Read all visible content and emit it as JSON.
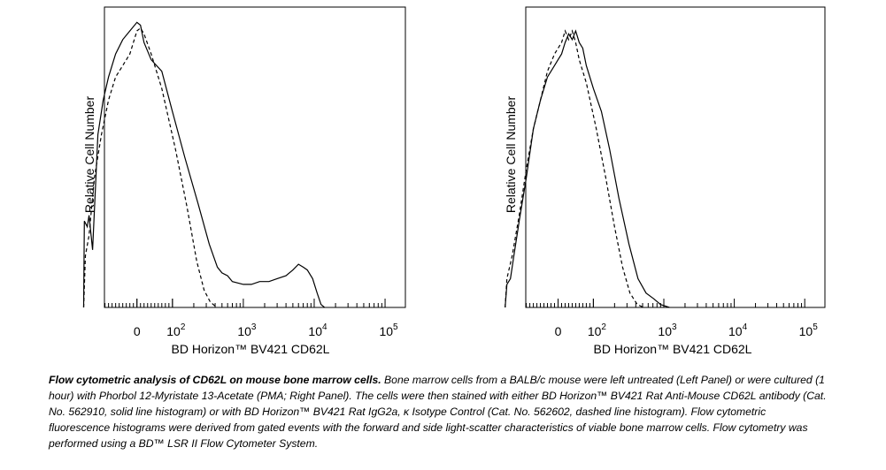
{
  "chart_data": [
    {
      "type": "line",
      "panel": "left",
      "ylabel": "Relative Cell Number",
      "xlabel": "BD Horizon™ BV421 CD62L",
      "x_scale": "biexponential",
      "x_ticks": [
        {
          "base": "0",
          "exp": "",
          "value": 0
        },
        {
          "base": "10",
          "exp": "2",
          "value": 100
        },
        {
          "base": "10",
          "exp": "3",
          "value": 1000
        },
        {
          "base": "10",
          "exp": "4",
          "value": 10000
        },
        {
          "base": "10",
          "exp": "5",
          "value": 100000
        }
      ],
      "ylim": [
        0,
        100
      ],
      "series": [
        {
          "style": "solid",
          "points": [
            [
              -150,
              0
            ],
            [
              -148,
              30
            ],
            [
              -140,
              28
            ],
            [
              -135,
              32
            ],
            [
              -125,
              20
            ],
            [
              -110,
              60
            ],
            [
              -95,
              72
            ],
            [
              -80,
              80
            ],
            [
              -60,
              88
            ],
            [
              -40,
              93
            ],
            [
              -20,
              96
            ],
            [
              0,
              99
            ],
            [
              10,
              98
            ],
            [
              20,
              92
            ],
            [
              40,
              86
            ],
            [
              70,
              82
            ],
            [
              100,
              68
            ],
            [
              150,
              52
            ],
            [
              230,
              36
            ],
            [
              330,
              22
            ],
            [
              430,
              14
            ],
            [
              500,
              12
            ],
            [
              600,
              11
            ],
            [
              700,
              9
            ],
            [
              1000,
              8
            ],
            [
              1300,
              8
            ],
            [
              1700,
              9
            ],
            [
              2300,
              9
            ],
            [
              3000,
              10
            ],
            [
              4000,
              11
            ],
            [
              5000,
              13
            ],
            [
              6000,
              15
            ],
            [
              7000,
              14
            ],
            [
              8000,
              13
            ],
            [
              9500,
              10
            ],
            [
              11000,
              5
            ],
            [
              12500,
              1
            ],
            [
              14000,
              0
            ]
          ]
        },
        {
          "style": "dashed",
          "points": [
            [
              -150,
              0
            ],
            [
              -145,
              18
            ],
            [
              -135,
              25
            ],
            [
              -120,
              45
            ],
            [
              -100,
              60
            ],
            [
              -80,
              72
            ],
            [
              -60,
              80
            ],
            [
              -40,
              84
            ],
            [
              -20,
              88
            ],
            [
              0,
              96
            ],
            [
              10,
              97
            ],
            [
              20,
              95
            ],
            [
              40,
              88
            ],
            [
              70,
              76
            ],
            [
              110,
              55
            ],
            [
              160,
              35
            ],
            [
              220,
              16
            ],
            [
              280,
              6
            ],
            [
              340,
              2
            ],
            [
              420,
              0
            ]
          ]
        }
      ]
    },
    {
      "type": "line",
      "panel": "right",
      "ylabel": "Relative Cell Number",
      "xlabel": "BD Horizon™ BV421 CD62L",
      "x_scale": "biexponential",
      "x_ticks": [
        {
          "base": "0",
          "exp": "",
          "value": 0
        },
        {
          "base": "10",
          "exp": "2",
          "value": 100
        },
        {
          "base": "10",
          "exp": "3",
          "value": 1000
        },
        {
          "base": "10",
          "exp": "4",
          "value": 10000
        },
        {
          "base": "10",
          "exp": "5",
          "value": 100000
        }
      ],
      "ylim": [
        0,
        100
      ],
      "series": [
        {
          "style": "solid",
          "points": [
            [
              -150,
              0
            ],
            [
              -145,
              8
            ],
            [
              -135,
              10
            ],
            [
              -125,
              18
            ],
            [
              -110,
              30
            ],
            [
              -90,
              45
            ],
            [
              -70,
              62
            ],
            [
              -50,
              72
            ],
            [
              -30,
              80
            ],
            [
              -10,
              84
            ],
            [
              0,
              86
            ],
            [
              10,
              88
            ],
            [
              20,
              92
            ],
            [
              30,
              95
            ],
            [
              40,
              93
            ],
            [
              50,
              96
            ],
            [
              60,
              92
            ],
            [
              70,
              90
            ],
            [
              80,
              84
            ],
            [
              100,
              76
            ],
            [
              130,
              68
            ],
            [
              170,
              55
            ],
            [
              230,
              38
            ],
            [
              320,
              22
            ],
            [
              430,
              10
            ],
            [
              560,
              5
            ],
            [
              720,
              3
            ],
            [
              900,
              1
            ],
            [
              1200,
              0
            ]
          ]
        },
        {
          "style": "dashed",
          "points": [
            [
              -150,
              0
            ],
            [
              -145,
              10
            ],
            [
              -130,
              18
            ],
            [
              -110,
              32
            ],
            [
              -90,
              48
            ],
            [
              -70,
              62
            ],
            [
              -50,
              72
            ],
            [
              -30,
              82
            ],
            [
              -10,
              88
            ],
            [
              0,
              90
            ],
            [
              10,
              92
            ],
            [
              20,
              96
            ],
            [
              30,
              93
            ],
            [
              40,
              96
            ],
            [
              50,
              92
            ],
            [
              60,
              86
            ],
            [
              80,
              78
            ],
            [
              110,
              62
            ],
            [
              150,
              45
            ],
            [
              200,
              28
            ],
            [
              260,
              14
            ],
            [
              330,
              5
            ],
            [
              420,
              1
            ],
            [
              520,
              0
            ]
          ]
        }
      ]
    }
  ],
  "caption": {
    "title": "Flow cytometric analysis of CD62L on mouse bone marrow cells.",
    "body": " Bone marrow cells from a BALB/c mouse were left untreated  (Left Panel) or were cultured (1 hour) with Phorbol 12-Myristate 13-Acetate (PMA; Right Panel). The cells were then stained with either BD Horizon™ BV421 Rat Anti-Mouse CD62L antibody (Cat. No. 562910, solid line histogram) or with BD Horizon™ BV421 Rat IgG2a, κ Isotype Control (Cat. No. 562602, dashed line histogram).  Flow cytometric fluorescence histograms were derived from gated events with the forward and side light-scatter characteristics of viable bone marrow cells. Flow cytometry was performed using a BD™ LSR II Flow Cytometer System."
  }
}
